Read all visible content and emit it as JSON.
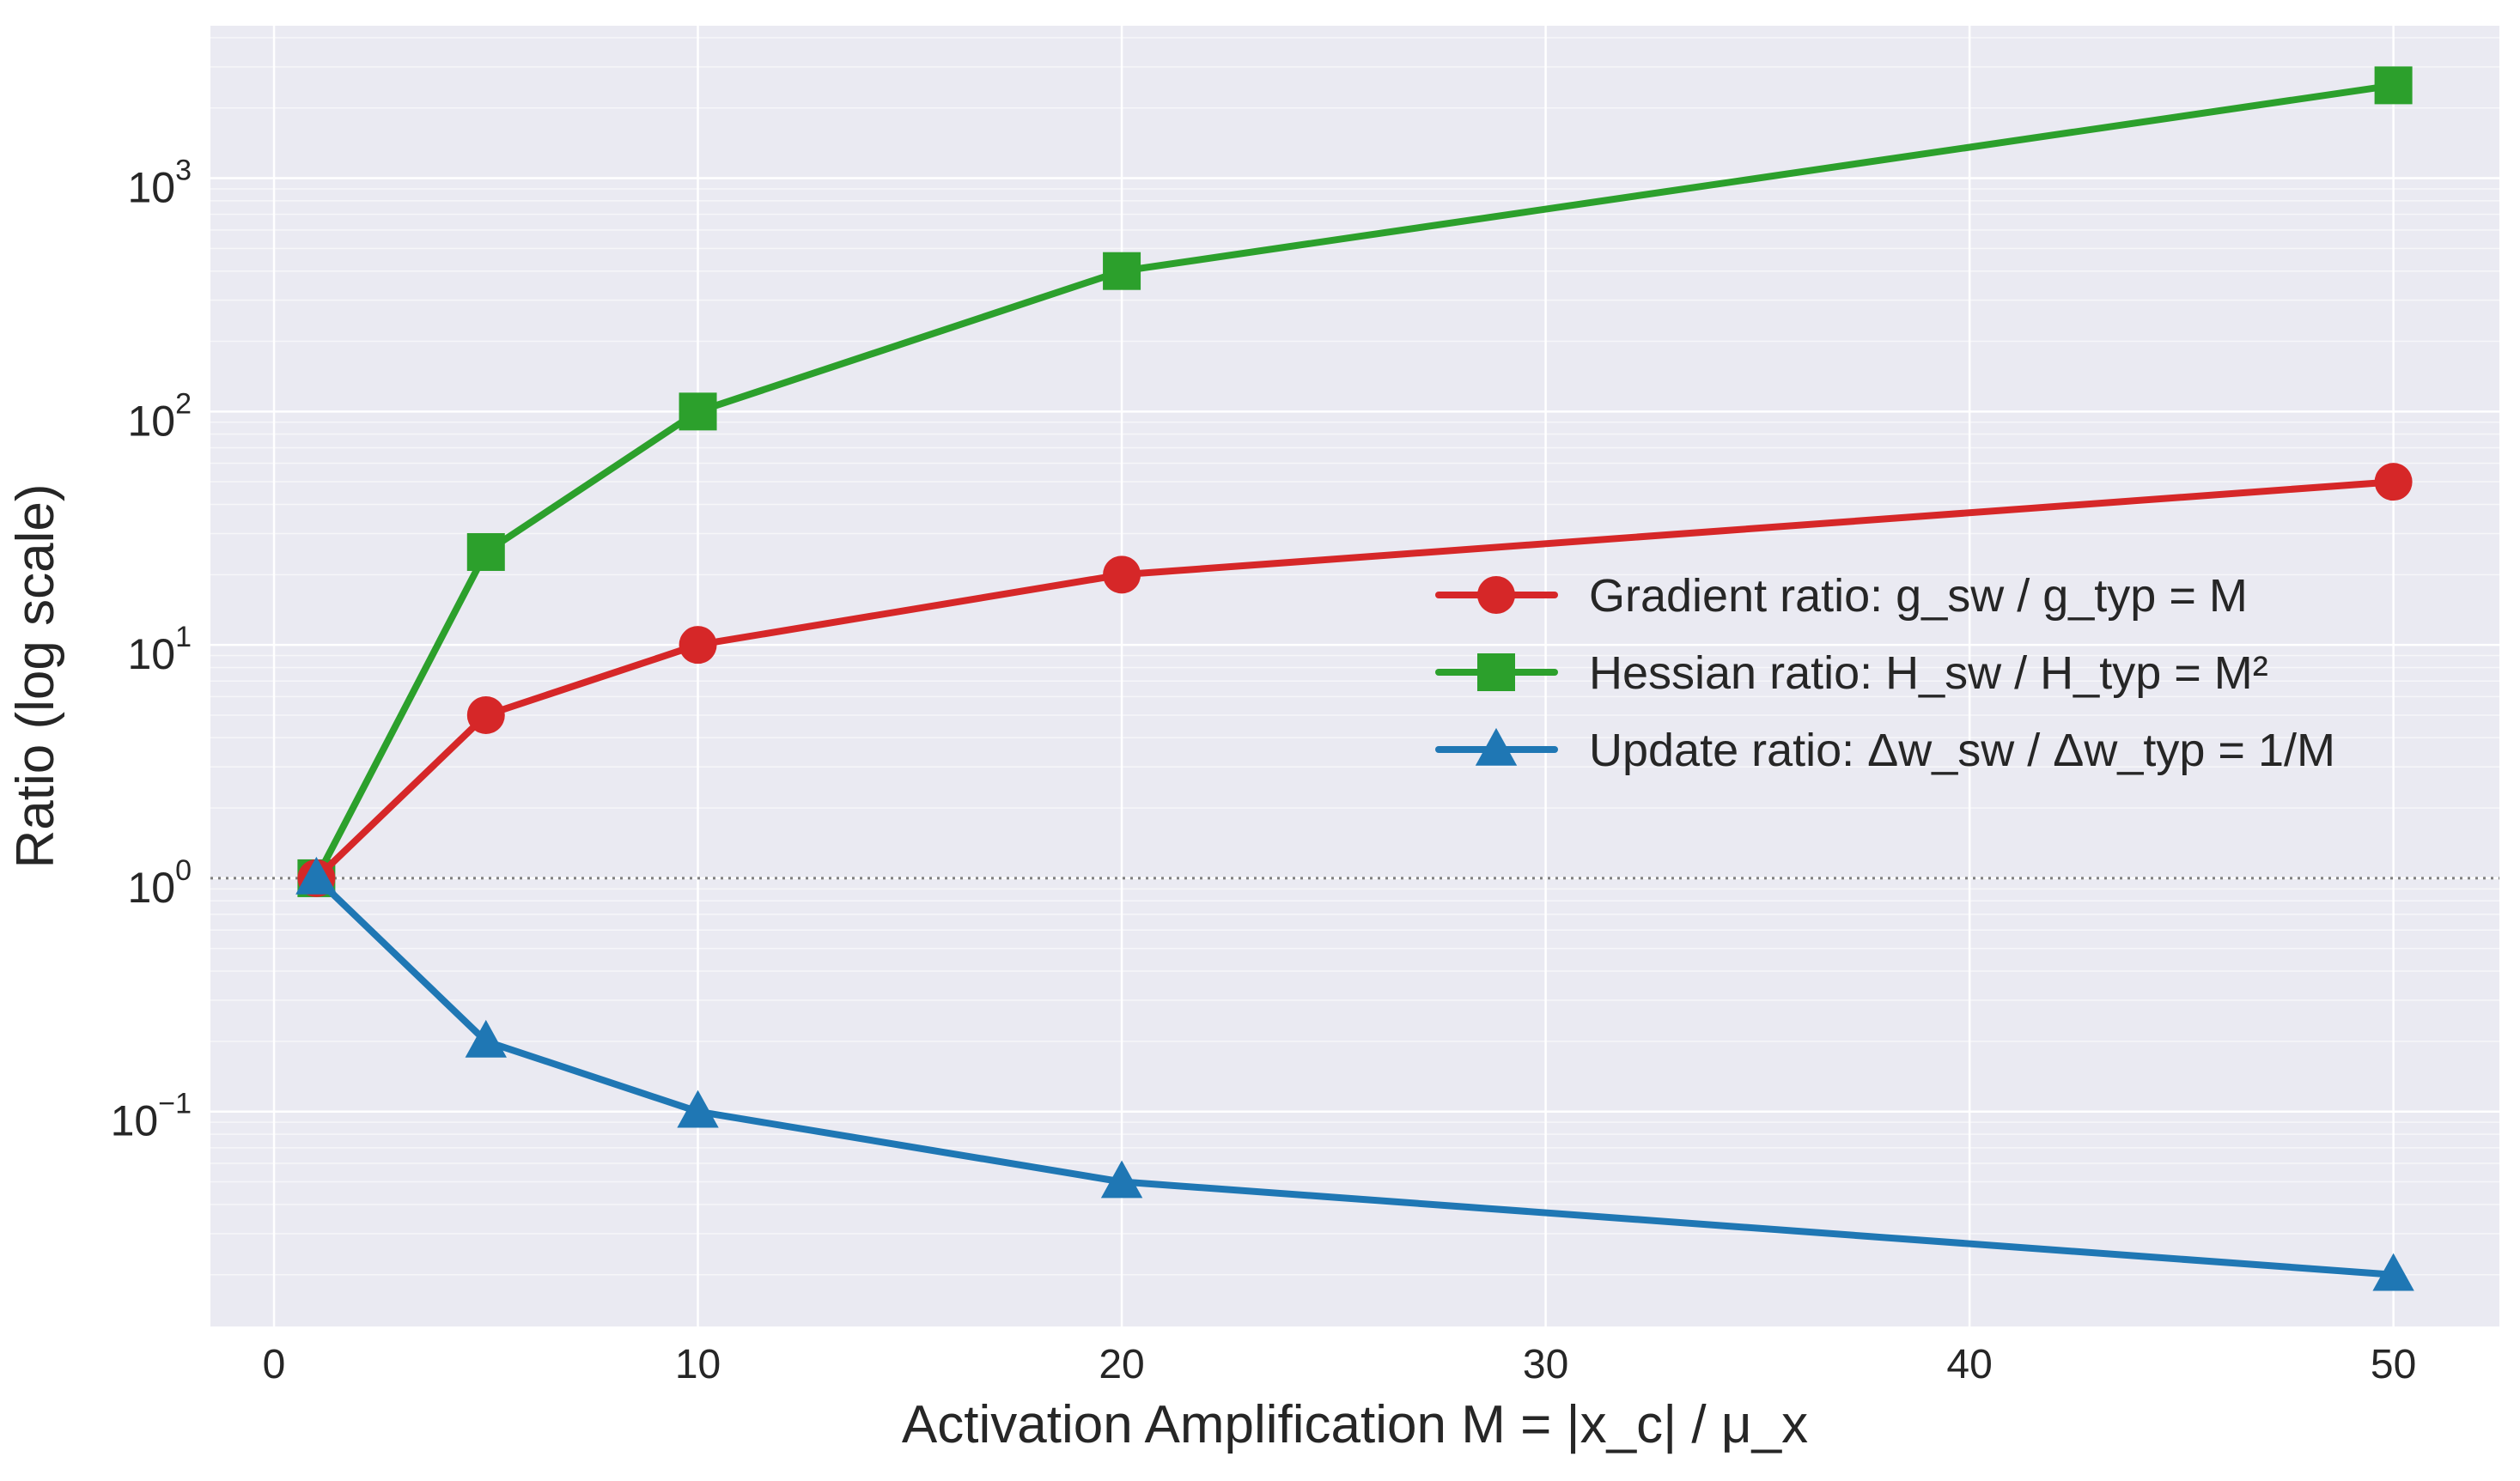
{
  "chart_data": {
    "type": "line",
    "title": "",
    "xlabel": "Activation Amplification M = |x_c| / μ_x",
    "ylabel": "Ratio (log scale)",
    "x": [
      1,
      5,
      10,
      20,
      50
    ],
    "xlim": [
      -1.5,
      52.5
    ],
    "ylim": [
      0.012,
      4500
    ],
    "yscale": "log",
    "grid": true,
    "x_ticks": [
      0,
      10,
      20,
      30,
      40,
      50
    ],
    "y_ticks": [
      {
        "value": 0.1,
        "base": "10",
        "exp": "−1"
      },
      {
        "value": 1,
        "base": "10",
        "exp": "0"
      },
      {
        "value": 10,
        "base": "10",
        "exp": "1"
      },
      {
        "value": 100,
        "base": "10",
        "exp": "2"
      },
      {
        "value": 1000,
        "base": "10",
        "exp": "3"
      }
    ],
    "reference_line": {
      "y": 1,
      "style": "dotted",
      "color": "#7f7f7f"
    },
    "legend_position": "center-right",
    "series": [
      {
        "name": "Gradient ratio: g_sw / g_typ = M",
        "values": [
          1,
          5,
          10,
          20,
          50
        ],
        "color": "#d62728",
        "marker": "circle"
      },
      {
        "name": "Hessian ratio: H_sw / H_typ = M²",
        "values": [
          1,
          25,
          100,
          400,
          2500
        ],
        "color": "#2ca02c",
        "marker": "square"
      },
      {
        "name": "Update ratio: Δw_sw / Δw_typ = 1/M",
        "values": [
          1,
          0.2,
          0.1,
          0.05,
          0.02
        ],
        "color": "#1f77b4",
        "marker": "triangle"
      }
    ]
  },
  "colors": {
    "plot_background": "#eaeaf2",
    "grid": "#ffffff",
    "text": "#262626"
  }
}
